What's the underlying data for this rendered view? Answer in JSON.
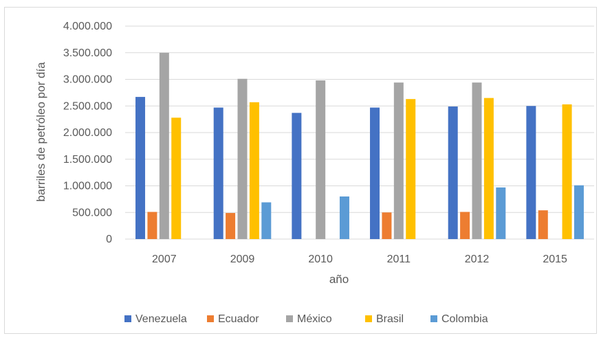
{
  "chart_data": {
    "type": "bar",
    "title": "",
    "xlabel": "año",
    "ylabel": "barriles de petróleo por día",
    "ylim": [
      0,
      4000000
    ],
    "yticks": [
      0,
      500000,
      1000000,
      1500000,
      2000000,
      2500000,
      3000000,
      3500000,
      4000000
    ],
    "ytick_labels": [
      "0",
      "500.000",
      "1.000.000",
      "1.500.000",
      "2.000.000",
      "2.500.000",
      "3.000.000",
      "3.500.000",
      "4.000.000"
    ],
    "grid": true,
    "legend_position": "bottom",
    "categories": [
      "2007",
      "2009",
      "2010",
      "2011",
      "2012",
      "2015"
    ],
    "series": [
      {
        "name": "Venezuela",
        "color": "#4472c4",
        "values": [
          2670000,
          2470000,
          2370000,
          2470000,
          2490000,
          2500000
        ]
      },
      {
        "name": "Ecuador",
        "color": "#ed7d31",
        "values": [
          510000,
          490000,
          null,
          500000,
          510000,
          540000
        ]
      },
      {
        "name": "México",
        "color": "#a5a5a5",
        "values": [
          3500000,
          3010000,
          2980000,
          2940000,
          2940000,
          null
        ]
      },
      {
        "name": "Brasil",
        "color": "#ffc000",
        "values": [
          2280000,
          2570000,
          null,
          2630000,
          2650000,
          2530000
        ]
      },
      {
        "name": "Colombia",
        "color": "#5b9bd5",
        "values": [
          null,
          690000,
          800000,
          null,
          970000,
          1010000
        ]
      }
    ]
  }
}
